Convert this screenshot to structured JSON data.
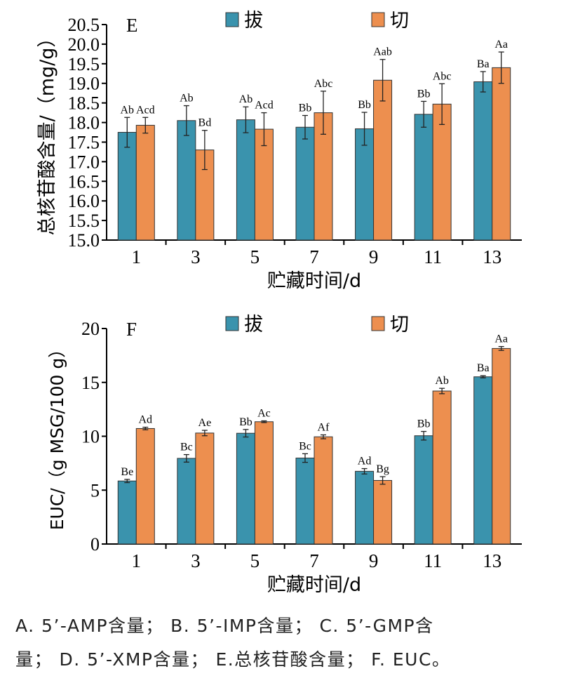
{
  "colors": {
    "pull": "#3a93ad",
    "cut": "#ed8f4f",
    "axis": "#000000"
  },
  "caption": {
    "line1": "A. 5’-AMP含量； B. 5’-IMP含量； C. 5’-GMP含",
    "line2": "量； D. 5’-XMP含量； E.总核苷酸含量； F. EUC。"
  },
  "chart_data": [
    {
      "type": "bar",
      "panel_label": "E",
      "categories": [
        "1",
        "3",
        "5",
        "7",
        "9",
        "11",
        "13"
      ],
      "xlabel": "贮藏时间/d",
      "ylabel": "总核苷酸含量/（mg/g）",
      "ylim": [
        15.0,
        20.5
      ],
      "yticks": [
        "15.0",
        "15.5",
        "16.0",
        "16.5",
        "17.0",
        "17.5",
        "18.0",
        "18.5",
        "19.0",
        "19.5",
        "20.0",
        "20.5"
      ],
      "legend_position": "top",
      "series": [
        {
          "name": "拔",
          "values": [
            17.75,
            18.05,
            18.07,
            17.88,
            17.84,
            18.21,
            19.04
          ],
          "errors": [
            0.38,
            0.38,
            0.33,
            0.3,
            0.42,
            0.33,
            0.26
          ],
          "labels": [
            "Ab",
            "Ab",
            "Ab",
            "Bb",
            "Bb",
            "Bb",
            "Ba"
          ]
        },
        {
          "name": "切",
          "values": [
            17.93,
            17.3,
            17.83,
            18.25,
            19.08,
            18.47,
            19.4
          ],
          "errors": [
            0.2,
            0.5,
            0.42,
            0.55,
            0.53,
            0.52,
            0.4
          ],
          "labels": [
            "Acd",
            "Bd",
            "Acd",
            "Abc",
            "Aab",
            "Abc",
            "Aa"
          ]
        }
      ]
    },
    {
      "type": "bar",
      "panel_label": "F",
      "categories": [
        "1",
        "3",
        "5",
        "7",
        "9",
        "11",
        "13"
      ],
      "xlabel": "贮藏时间/d",
      "ylabel": "EUC/（g MSG/100 g）",
      "ylim": [
        0,
        20
      ],
      "yticks": [
        "0",
        "5",
        "10",
        "15",
        "20"
      ],
      "legend_position": "top",
      "series": [
        {
          "name": "拔",
          "values": [
            5.85,
            7.95,
            10.28,
            7.98,
            6.75,
            10.05,
            15.52
          ],
          "errors": [
            0.15,
            0.35,
            0.35,
            0.4,
            0.25,
            0.4,
            0.1
          ],
          "labels": [
            "Be",
            "Bc",
            "Bb",
            "Bc",
            "Ad",
            "Bb",
            "Ba"
          ]
        },
        {
          "name": "切",
          "values": [
            10.72,
            10.3,
            11.35,
            9.95,
            5.9,
            14.2,
            18.15
          ],
          "errors": [
            0.12,
            0.25,
            0.08,
            0.18,
            0.35,
            0.25,
            0.18
          ],
          "labels": [
            "Ad",
            "Ae",
            "Ac",
            "Af",
            "Bg",
            "Ab",
            "Aa"
          ]
        }
      ]
    }
  ]
}
